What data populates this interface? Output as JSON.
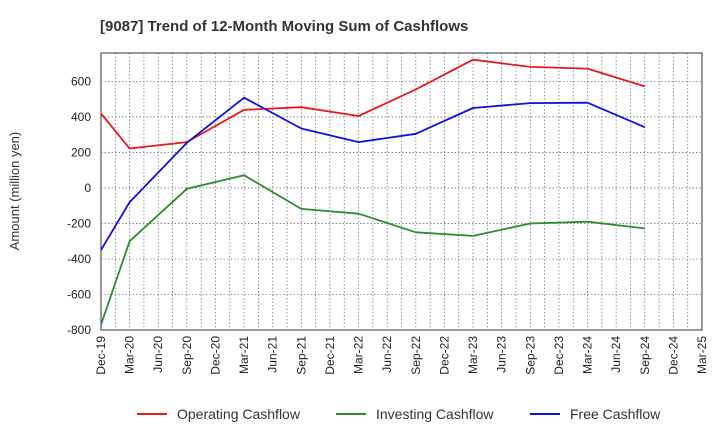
{
  "chart_data": {
    "type": "line",
    "title": "[9087]  Trend of 12-Month Moving Sum of Cashflows",
    "xlabel": "",
    "ylabel": "Amount (million yen)",
    "ylim": [
      -800,
      760
    ],
    "yticks": [
      -800,
      -600,
      -400,
      -200,
      0,
      200,
      400,
      600
    ],
    "grid": true,
    "legend_position": "bottom",
    "categories": [
      "Dec-19",
      "Mar-20",
      "Jun-20",
      "Sep-20",
      "Dec-20",
      "Mar-21",
      "Jun-21",
      "Sep-21",
      "Dec-21",
      "Mar-22",
      "Jun-22",
      "Sep-22",
      "Dec-22",
      "Mar-23",
      "Jun-23",
      "Sep-23",
      "Dec-23",
      "Mar-24",
      "Jun-24",
      "Sep-24",
      "Dec-24",
      "Mar-25"
    ],
    "series": [
      {
        "name": "Operating Cashflow",
        "color": "#e41a1c",
        "values": [
          420,
          222,
          null,
          258,
          null,
          440,
          null,
          455,
          null,
          405,
          null,
          555,
          null,
          722,
          null,
          682,
          null,
          672,
          null,
          572,
          null,
          null
        ]
      },
      {
        "name": "Investing Cashflow",
        "color": "#2e8b2e",
        "values": [
          -770,
          -300,
          null,
          -5,
          null,
          72,
          null,
          -118,
          null,
          -145,
          null,
          -250,
          null,
          -270,
          null,
          -200,
          null,
          -190,
          null,
          -228,
          null,
          null
        ]
      },
      {
        "name": "Free Cashflow",
        "color": "#1010dd",
        "values": [
          -350,
          -80,
          null,
          255,
          null,
          508,
          null,
          335,
          null,
          258,
          null,
          305,
          null,
          450,
          null,
          478,
          null,
          480,
          null,
          342,
          null,
          null
        ]
      }
    ]
  }
}
